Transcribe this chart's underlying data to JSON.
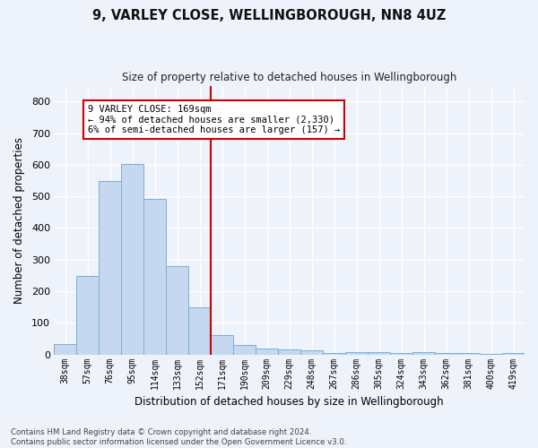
{
  "title": "9, VARLEY CLOSE, WELLINGBOROUGH, NN8 4UZ",
  "subtitle": "Size of property relative to detached houses in Wellingborough",
  "xlabel": "Distribution of detached houses by size in Wellingborough",
  "ylabel": "Number of detached properties",
  "footer_line1": "Contains HM Land Registry data © Crown copyright and database right 2024.",
  "footer_line2": "Contains public sector information licensed under the Open Government Licence v3.0.",
  "categories": [
    "38sqm",
    "57sqm",
    "76sqm",
    "95sqm",
    "114sqm",
    "133sqm",
    "152sqm",
    "171sqm",
    "190sqm",
    "209sqm",
    "229sqm",
    "248sqm",
    "267sqm",
    "286sqm",
    "305sqm",
    "324sqm",
    "343sqm",
    "362sqm",
    "381sqm",
    "400sqm",
    "419sqm"
  ],
  "values": [
    33,
    248,
    548,
    603,
    493,
    278,
    148,
    62,
    30,
    20,
    15,
    12,
    5,
    8,
    8,
    5,
    8,
    5,
    5,
    2,
    5
  ],
  "bar_color": "#c5d8f0",
  "bar_edge_color": "#7aafd4",
  "background_color": "#eef2fb",
  "grid_color": "#ffffff",
  "vline_x_index": 7,
  "vline_color": "#cc0000",
  "annotation_text": "9 VARLEY CLOSE: 169sqm\n← 94% of detached houses are smaller (2,330)\n6% of semi-detached houses are larger (157) →",
  "annotation_box_color": "#ffffff",
  "annotation_box_edge_color": "#cc0000",
  "ylim": [
    0,
    850
  ],
  "yticks": [
    0,
    100,
    200,
    300,
    400,
    500,
    600,
    700,
    800
  ]
}
